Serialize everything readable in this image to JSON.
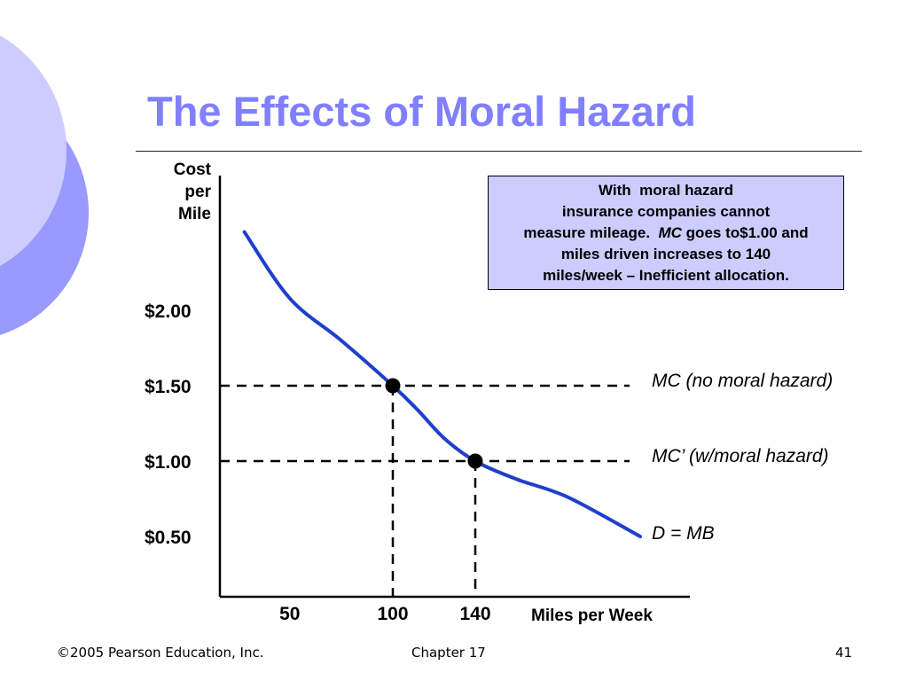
{
  "slide": {
    "title": "The Effects of Moral Hazard",
    "note": {
      "line1": "With  moral hazard",
      "line2": "insurance companies cannot",
      "line3_a": "measure mileage.  ",
      "line3_b": "MC",
      "line3_c": " goes to$1.00 and",
      "line4": "miles driven increases to 140",
      "line5": "miles/week – Inefficient allocation."
    },
    "footer": {
      "copyright": "©2005 Pearson Education, Inc.",
      "chapter": "Chapter 17",
      "page": "41"
    },
    "colors": {
      "title": "#8080ff",
      "curve": "#1f3fcc",
      "note_bg": "#ccccff",
      "deco_light": "#ccccff",
      "deco_dark": "#9999ff"
    }
  },
  "chart_data": {
    "type": "line",
    "ylabel": [
      "Cost",
      "per",
      "Mile"
    ],
    "xlabel": "Miles per Week",
    "y_ticks": [
      {
        "value": 2.0,
        "label": "$2.00"
      },
      {
        "value": 1.5,
        "label": "$1.50"
      },
      {
        "value": 1.0,
        "label": "$1.00"
      },
      {
        "value": 0.5,
        "label": "$0.50"
      }
    ],
    "x_ticks": [
      {
        "value": 50,
        "label": "50"
      },
      {
        "value": 100,
        "label": "100"
      },
      {
        "value": 140,
        "label": "140"
      }
    ],
    "series": [
      {
        "name": "D = MB",
        "x": [
          28,
          50,
          75,
          100,
          112,
          125,
          140,
          160,
          185,
          220
        ],
        "y": [
          2.52,
          2.08,
          1.8,
          1.5,
          1.34,
          1.15,
          1.0,
          0.88,
          0.76,
          0.5
        ]
      }
    ],
    "reference_lines": [
      {
        "axis": "y",
        "value": 1.5,
        "label": "MC (no moral hazard)"
      },
      {
        "axis": "y",
        "value": 1.0,
        "label": "MC’ (w/moral hazard)"
      }
    ],
    "points": [
      {
        "x": 100,
        "y": 1.5
      },
      {
        "x": 140,
        "y": 1.0
      }
    ],
    "curve_label": "D = MB"
  }
}
